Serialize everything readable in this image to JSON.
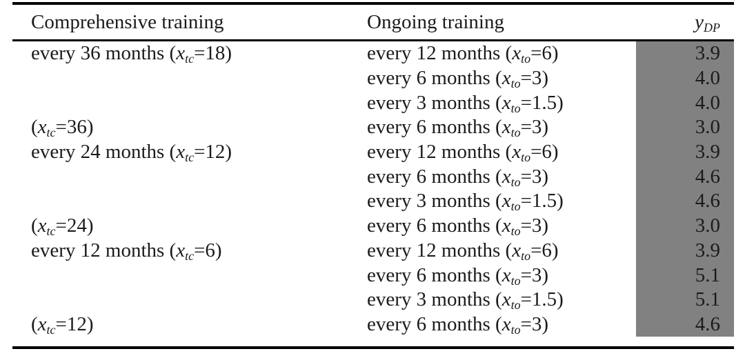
{
  "table": {
    "headers": {
      "comprehensive": "Comprehensive training",
      "ongoing": "Ongoing training",
      "ydp": {
        "var": "y",
        "sub": "DP"
      }
    },
    "rows": [
      {
        "comp": {
          "pre": "every 36 months (",
          "var": "x",
          "sub": "tc",
          "post": "=18)"
        },
        "ong": {
          "pre": "every 12 months (",
          "var": "x",
          "sub": "to",
          "post": "=6)"
        },
        "ydp": "3.9"
      },
      {
        "comp": {
          "pre": "",
          "var": "",
          "sub": "",
          "post": ""
        },
        "ong": {
          "pre": "every 6 months (",
          "var": "x",
          "sub": "to",
          "post": "=3)"
        },
        "ydp": "4.0"
      },
      {
        "comp": {
          "pre": "",
          "var": "",
          "sub": "",
          "post": ""
        },
        "ong": {
          "pre": "every 3 months (",
          "var": "x",
          "sub": "to",
          "post": "=1.5)"
        },
        "ydp": "4.0"
      },
      {
        "comp": {
          "pre": "(",
          "var": "x",
          "sub": "tc",
          "post": "=36)"
        },
        "ong": {
          "pre": "every 6 months (",
          "var": "x",
          "sub": "to",
          "post": "=3)"
        },
        "ydp": "3.0"
      },
      {
        "comp": {
          "pre": "every 24 months (",
          "var": "x",
          "sub": "tc",
          "post": "=12)"
        },
        "ong": {
          "pre": "every 12 months (",
          "var": "x",
          "sub": "to",
          "post": "=6)"
        },
        "ydp": "3.9"
      },
      {
        "comp": {
          "pre": "",
          "var": "",
          "sub": "",
          "post": ""
        },
        "ong": {
          "pre": "every 6 months (",
          "var": "x",
          "sub": "to",
          "post": "=3)"
        },
        "ydp": "4.6"
      },
      {
        "comp": {
          "pre": "",
          "var": "",
          "sub": "",
          "post": ""
        },
        "ong": {
          "pre": "every 3 months (",
          "var": "x",
          "sub": "to",
          "post": "=1.5)"
        },
        "ydp": "4.6"
      },
      {
        "comp": {
          "pre": "(",
          "var": "x",
          "sub": "tc",
          "post": "=24)"
        },
        "ong": {
          "pre": "every 6 months (",
          "var": "x",
          "sub": "to",
          "post": "=3)"
        },
        "ydp": "3.0"
      },
      {
        "comp": {
          "pre": "every 12 months (",
          "var": "x",
          "sub": "tc",
          "post": "=6)"
        },
        "ong": {
          "pre": "every 12 months (",
          "var": "x",
          "sub": "to",
          "post": "=6)"
        },
        "ydp": "3.9"
      },
      {
        "comp": {
          "pre": "",
          "var": "",
          "sub": "",
          "post": ""
        },
        "ong": {
          "pre": "every 6 months (",
          "var": "x",
          "sub": "to",
          "post": "=3)"
        },
        "ydp": "5.1"
      },
      {
        "comp": {
          "pre": "",
          "var": "",
          "sub": "",
          "post": ""
        },
        "ong": {
          "pre": "every 3 months (",
          "var": "x",
          "sub": "to",
          "post": "=1.5)"
        },
        "ydp": "5.1"
      },
      {
        "comp": {
          "pre": "(",
          "var": "x",
          "sub": "tc",
          "post": "=12)"
        },
        "ong": {
          "pre": "every 6 months (",
          "var": "x",
          "sub": "to",
          "post": "=3)"
        },
        "ydp": "4.6"
      }
    ],
    "colors": {
      "highlight_column": "#818181",
      "rule": "#000000",
      "text": "#1b1b1b",
      "background": "#ffffff"
    }
  }
}
